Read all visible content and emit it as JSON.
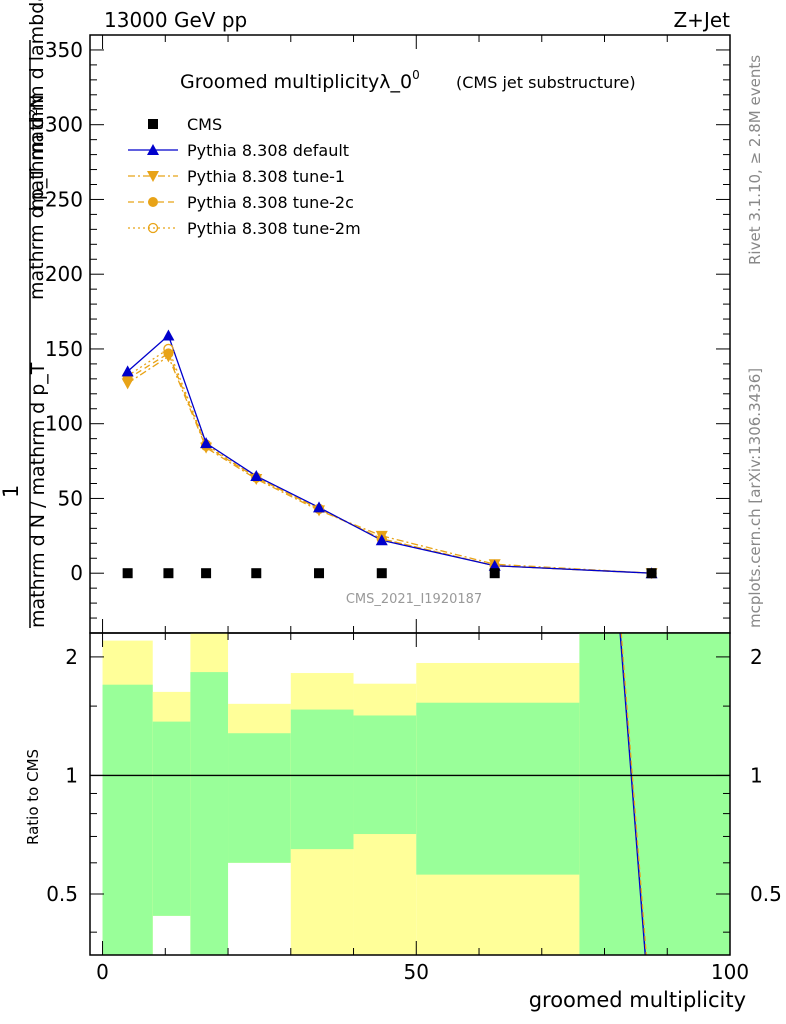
{
  "header": {
    "left": "13000 GeV pp",
    "right": "Z+Jet"
  },
  "side_labels": {
    "rivet": "Rivet 3.1.10, ≥ 2.8M events",
    "mcplots": "mcplots.cern.ch [arXiv:1306.3436]"
  },
  "chart_data": [
    {
      "type": "line",
      "panel": "main",
      "title_main": "Groomed multiplicityλ_0",
      "title_sup": "0",
      "title_sub": "(CMS jet substructure)",
      "ylabel": {
        "numerator": "mathrm d²N",
        "sub_right": "mathrm d p_T mathrm d lambda",
        "denominator": "mathrm d N / mathrm d p_T",
        "prefix": "1"
      },
      "ylabel_plain": "1/(mathrm d N / mathrm d p_T) mathrm d²N/(mathrm d p_T mathrm d lambda)",
      "ylim": [
        -40,
        360
      ],
      "yticks": [
        0,
        50,
        100,
        150,
        200,
        250,
        300,
        350
      ],
      "xlim": [
        -2,
        100
      ],
      "watermark": "CMS_2021_I1920187",
      "legend_placement": "top-left",
      "x": [
        4,
        10.5,
        16.5,
        24.5,
        34.5,
        44.5,
        62.5,
        87.5
      ],
      "series": [
        {
          "name": "CMS",
          "color": "#000000",
          "marker": "square",
          "line": "none",
          "values": [
            0,
            0,
            0,
            0,
            0,
            0,
            0,
            0
          ]
        },
        {
          "name": "Pythia 8.308 default",
          "color": "#0000cc",
          "marker": "triangle-up",
          "line": "solid",
          "values": [
            135,
            159,
            87,
            65,
            44,
            22,
            5,
            0
          ]
        },
        {
          "name": "Pythia 8.308 tune-1",
          "color": "#e8a317",
          "marker": "triangle-down",
          "line": "dashdot",
          "values": [
            127,
            145,
            84,
            63,
            42,
            25,
            6,
            0
          ]
        },
        {
          "name": "Pythia 8.308 tune-2c",
          "color": "#e8a317",
          "marker": "circle-filled",
          "line": "dashed",
          "values": [
            130,
            147,
            85,
            64,
            43,
            23,
            5,
            0
          ]
        },
        {
          "name": "Pythia 8.308 tune-2m",
          "color": "#e8a317",
          "marker": "circle-open",
          "line": "dotted",
          "values": [
            132,
            150,
            86,
            64,
            43,
            23,
            5,
            0
          ]
        }
      ]
    },
    {
      "type": "area",
      "panel": "ratio",
      "ylabel": "Ratio to CMS",
      "xlabel": "groomed multiplicity",
      "xlim": [
        -2,
        100
      ],
      "ylim": [
        0.35,
        2.3
      ],
      "xticks": [
        0,
        50,
        100
      ],
      "yticks": [
        0.5,
        1,
        2
      ],
      "reference_line": 1,
      "bins": [
        {
          "x0": 0,
          "x1": 8,
          "green": [
            0.35,
            1.7
          ],
          "yellow": [
            0.35,
            2.2
          ]
        },
        {
          "x0": 8,
          "x1": 14,
          "green": [
            0.44,
            1.37
          ],
          "yellow": [
            0.44,
            1.63
          ]
        },
        {
          "x0": 14,
          "x1": 20,
          "green": [
            0.35,
            1.83
          ],
          "yellow": [
            0.35,
            2.3
          ]
        },
        {
          "x0": 20,
          "x1": 30,
          "green": [
            0.6,
            1.28
          ],
          "yellow": [
            0.6,
            1.52
          ]
        },
        {
          "x0": 30,
          "x1": 40,
          "green": [
            0.65,
            1.47
          ],
          "yellow": [
            0.35,
            1.82
          ]
        },
        {
          "x0": 40,
          "x1": 50,
          "green": [
            0.71,
            1.42
          ],
          "yellow": [
            0.35,
            1.71
          ]
        },
        {
          "x0": 50,
          "x1": 76,
          "green": [
            0.56,
            1.53
          ],
          "yellow": [
            0.35,
            1.93
          ]
        },
        {
          "x0": 76,
          "x1": 100,
          "green": [
            0.35,
            2.3
          ],
          "yellow": [
            0.35,
            2.3
          ]
        }
      ],
      "green_color": "#99ff99",
      "yellow_color": "#ffff99",
      "ratio_line": {
        "x": [
          82.5,
          86.5
        ],
        "y": [
          2.3,
          0.35
        ],
        "colors": [
          "#0000cc",
          "#e8a317"
        ]
      }
    }
  ]
}
